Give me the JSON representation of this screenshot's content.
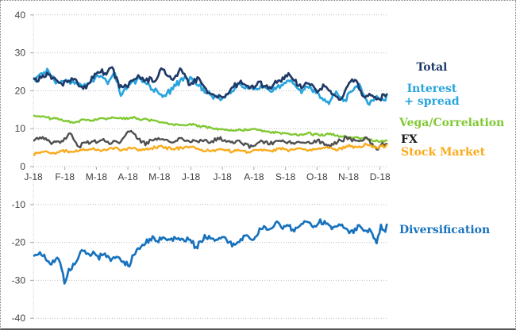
{
  "chart_data": {
    "type": "line",
    "title": "",
    "xlabel": "",
    "ylabel": "",
    "x_axis": {
      "categories": [
        "J-18",
        "F-18",
        "M-18",
        "A-18",
        "M-18",
        "J-18",
        "J-18",
        "A-18",
        "S-18",
        "O-18",
        "N-18",
        "D-18"
      ]
    },
    "y_axis": {
      "min": -40,
      "max": 40,
      "step": 10,
      "tick_labels": [
        "40",
        "30",
        "20",
        "10",
        "0",
        "-10",
        "-20",
        "-30",
        "-40"
      ],
      "tick_values": [
        40,
        30,
        20,
        10,
        0,
        -10,
        -20,
        -30,
        -40
      ]
    },
    "grid": "horizontal dotted gridlines every 10 units",
    "legend_position": "right",
    "axis_text_color": "#3f3f3f",
    "grid_color": "#bdbdbd",
    "series": [
      {
        "name": "Total",
        "legend": "Total",
        "color": "#1F3A68",
        "noise": 0.6,
        "points": [
          [
            0,
            22.5
          ],
          [
            0.45,
            24.6
          ],
          [
            0.7,
            22.3
          ],
          [
            1.0,
            22.2
          ],
          [
            1.25,
            23.3
          ],
          [
            1.5,
            20.4
          ],
          [
            1.8,
            23.0
          ],
          [
            2.0,
            25.8
          ],
          [
            2.2,
            24.0
          ],
          [
            2.4,
            26.3
          ],
          [
            2.7,
            20.6
          ],
          [
            3.0,
            22.0
          ],
          [
            3.2,
            24.0
          ],
          [
            3.5,
            22.5
          ],
          [
            3.8,
            23.2
          ],
          [
            4.0,
            25.8
          ],
          [
            4.3,
            23.0
          ],
          [
            4.55,
            25.6
          ],
          [
            4.85,
            22.0
          ],
          [
            5.1,
            23.3
          ],
          [
            5.4,
            19.8
          ],
          [
            5.65,
            18.6
          ],
          [
            5.95,
            18.4
          ],
          [
            6.2,
            21.0
          ],
          [
            6.45,
            22.6
          ],
          [
            6.7,
            20.8
          ],
          [
            7.0,
            22.0
          ],
          [
            7.3,
            20.4
          ],
          [
            7.6,
            22.8
          ],
          [
            7.95,
            24.2
          ],
          [
            8.25,
            20.8
          ],
          [
            8.55,
            22.3
          ],
          [
            8.8,
            19.8
          ],
          [
            9.05,
            21.4
          ],
          [
            9.3,
            19.0
          ],
          [
            9.55,
            17.8
          ],
          [
            9.8,
            21.8
          ],
          [
            10.0,
            23.2
          ],
          [
            10.25,
            17.8
          ],
          [
            10.5,
            18.8
          ],
          [
            10.75,
            17.9
          ],
          [
            11,
            19.8
          ]
        ]
      },
      {
        "name": "Interest + spread",
        "legend_lines": [
          "Interest",
          "+ spread"
        ],
        "color": "#28A4DE",
        "noise": 0.6,
        "points": [
          [
            0,
            22.8
          ],
          [
            0.4,
            25.4
          ],
          [
            0.65,
            22.5
          ],
          [
            0.95,
            22.8
          ],
          [
            1.2,
            22.4
          ],
          [
            1.5,
            21.2
          ],
          [
            1.8,
            22.6
          ],
          [
            2.05,
            24.6
          ],
          [
            2.3,
            22.6
          ],
          [
            2.5,
            24.4
          ],
          [
            2.7,
            19.2
          ],
          [
            3.0,
            21.6
          ],
          [
            3.25,
            23.4
          ],
          [
            3.6,
            21.4
          ],
          [
            3.9,
            19.0
          ],
          [
            4.1,
            18.6
          ],
          [
            4.4,
            21.4
          ],
          [
            4.7,
            23.8
          ],
          [
            5.0,
            22.4
          ],
          [
            5.3,
            20.0
          ],
          [
            5.6,
            18.4
          ],
          [
            5.9,
            18.0
          ],
          [
            6.2,
            20.6
          ],
          [
            6.5,
            21.8
          ],
          [
            6.8,
            20.2
          ],
          [
            7.1,
            21.2
          ],
          [
            7.4,
            19.6
          ],
          [
            7.7,
            21.6
          ],
          [
            8.0,
            22.6
          ],
          [
            8.3,
            19.4
          ],
          [
            8.6,
            21.0
          ],
          [
            8.9,
            18.6
          ],
          [
            9.15,
            16.8
          ],
          [
            9.4,
            19.6
          ],
          [
            9.65,
            17.2
          ],
          [
            9.9,
            20.4
          ],
          [
            10.15,
            21.6
          ],
          [
            10.4,
            16.9
          ],
          [
            10.65,
            18.2
          ],
          [
            10.85,
            17.5
          ],
          [
            11,
            18.6
          ]
        ]
      },
      {
        "name": "Vega/Correlation",
        "legend": "Vega/Correlation",
        "color": "#80C933",
        "noise": 0.22,
        "points": [
          [
            0,
            13.4
          ],
          [
            0.3,
            13.0
          ],
          [
            0.65,
            12.6
          ],
          [
            0.9,
            12.2
          ],
          [
            1.2,
            11.6
          ],
          [
            1.55,
            12.4
          ],
          [
            1.85,
            12.2
          ],
          [
            2.1,
            12.6
          ],
          [
            2.45,
            12.9
          ],
          [
            2.75,
            12.6
          ],
          [
            3.05,
            12.9
          ],
          [
            3.4,
            12.4
          ],
          [
            3.65,
            12.2
          ],
          [
            3.95,
            11.7
          ],
          [
            4.3,
            11.2
          ],
          [
            4.6,
            10.8
          ],
          [
            4.85,
            11.2
          ],
          [
            5.2,
            10.6
          ],
          [
            5.5,
            10.2
          ],
          [
            5.95,
            9.8
          ],
          [
            6.4,
            9.6
          ],
          [
            6.9,
            9.9
          ],
          [
            7.35,
            9.2
          ],
          [
            7.8,
            8.8
          ],
          [
            8.25,
            8.4
          ],
          [
            8.5,
            8.8
          ],
          [
            8.9,
            8.2
          ],
          [
            9.15,
            8.5
          ],
          [
            9.45,
            8.2
          ],
          [
            9.8,
            7.8
          ],
          [
            10.1,
            7.6
          ],
          [
            10.35,
            7.2
          ],
          [
            10.7,
            6.6
          ],
          [
            11,
            6.9
          ]
        ]
      },
      {
        "name": "FX",
        "legend": "FX",
        "color": "#4F4F4F",
        "noise": 0.45,
        "points": [
          [
            0,
            6.8
          ],
          [
            0.3,
            7.6
          ],
          [
            0.55,
            6.2
          ],
          [
            0.9,
            6.8
          ],
          [
            1.1,
            8.8
          ],
          [
            1.4,
            5.3
          ],
          [
            1.65,
            6.5
          ],
          [
            1.85,
            6.6
          ],
          [
            2.1,
            7.0
          ],
          [
            2.4,
            6.4
          ],
          [
            2.75,
            6.8
          ],
          [
            2.95,
            9.9
          ],
          [
            3.2,
            7.4
          ],
          [
            3.5,
            6.0
          ],
          [
            3.65,
            7.0
          ],
          [
            3.95,
            7.2
          ],
          [
            4.3,
            6.6
          ],
          [
            4.6,
            7.2
          ],
          [
            4.85,
            6.6
          ],
          [
            5.2,
            7.0
          ],
          [
            5.5,
            6.6
          ],
          [
            5.8,
            7.4
          ],
          [
            6.15,
            6.2
          ],
          [
            6.4,
            6.8
          ],
          [
            6.7,
            5.4
          ],
          [
            7.05,
            6.6
          ],
          [
            7.35,
            6.2
          ],
          [
            7.6,
            7.0
          ],
          [
            7.95,
            6.0
          ],
          [
            8.25,
            6.6
          ],
          [
            8.55,
            6.0
          ],
          [
            8.9,
            6.8
          ],
          [
            9.15,
            5.0
          ],
          [
            9.45,
            6.4
          ],
          [
            9.8,
            7.6
          ],
          [
            10.1,
            6.6
          ],
          [
            10.35,
            7.4
          ],
          [
            10.7,
            4.2
          ],
          [
            10.85,
            6.0
          ],
          [
            11,
            6.0
          ]
        ]
      },
      {
        "name": "Stock Market",
        "legend": "Stock Market",
        "color": "#FAAB1C",
        "noise": 0.3,
        "points": [
          [
            0,
            3.1
          ],
          [
            0.3,
            3.9
          ],
          [
            0.65,
            3.5
          ],
          [
            0.9,
            4.2
          ],
          [
            1.2,
            3.8
          ],
          [
            1.55,
            4.3
          ],
          [
            1.85,
            4.6
          ],
          [
            2.1,
            4.2
          ],
          [
            2.45,
            4.8
          ],
          [
            2.75,
            4.4
          ],
          [
            3.05,
            4.9
          ],
          [
            3.4,
            4.4
          ],
          [
            3.65,
            4.7
          ],
          [
            3.95,
            5.3
          ],
          [
            4.3,
            4.6
          ],
          [
            4.6,
            4.9
          ],
          [
            4.85,
            5.4
          ],
          [
            5.2,
            4.4
          ],
          [
            5.5,
            4.2
          ],
          [
            5.8,
            4.6
          ],
          [
            6.15,
            4.0
          ],
          [
            6.4,
            4.4
          ],
          [
            6.7,
            3.9
          ],
          [
            7.05,
            4.5
          ],
          [
            7.35,
            4.2
          ],
          [
            7.6,
            4.7
          ],
          [
            7.95,
            4.3
          ],
          [
            8.25,
            4.6
          ],
          [
            8.55,
            4.2
          ],
          [
            8.9,
            4.8
          ],
          [
            9.15,
            5.0
          ],
          [
            9.45,
            4.6
          ],
          [
            9.8,
            5.5
          ],
          [
            10.1,
            5.1
          ],
          [
            10.35,
            5.9
          ],
          [
            10.7,
            5.2
          ],
          [
            11,
            5.5
          ]
        ]
      },
      {
        "name": "Diversification",
        "legend": "Diversification",
        "color": "#1772BE",
        "noise": 0.55,
        "points": [
          [
            0,
            -23.5
          ],
          [
            0.2,
            -22.8
          ],
          [
            0.4,
            -24.5
          ],
          [
            0.55,
            -25.3
          ],
          [
            0.75,
            -24.0
          ],
          [
            0.85,
            -26.5
          ],
          [
            0.95,
            -30.8
          ],
          [
            1.1,
            -27.0
          ],
          [
            1.3,
            -25.5
          ],
          [
            1.5,
            -21.8
          ],
          [
            1.7,
            -23.2
          ],
          [
            1.85,
            -22.6
          ],
          [
            2.0,
            -24.0
          ],
          [
            2.2,
            -23.0
          ],
          [
            2.4,
            -24.8
          ],
          [
            2.6,
            -23.4
          ],
          [
            2.75,
            -25.0
          ],
          [
            2.95,
            -26.0
          ],
          [
            3.1,
            -23.0
          ],
          [
            3.3,
            -21.0
          ],
          [
            3.5,
            -19.8
          ],
          [
            3.7,
            -18.6
          ],
          [
            3.85,
            -19.6
          ],
          [
            4.05,
            -18.8
          ],
          [
            4.25,
            -19.2
          ],
          [
            4.4,
            -18.8
          ],
          [
            4.6,
            -19.2
          ],
          [
            4.85,
            -19.2
          ],
          [
            5.05,
            -21.3
          ],
          [
            5.25,
            -19.0
          ],
          [
            5.5,
            -18.6
          ],
          [
            5.7,
            -19.8
          ],
          [
            5.9,
            -18.4
          ],
          [
            6.05,
            -20.0
          ],
          [
            6.25,
            -21.0
          ],
          [
            6.45,
            -19.4
          ],
          [
            6.6,
            -18.0
          ],
          [
            6.8,
            -19.4
          ],
          [
            7.0,
            -17.0
          ],
          [
            7.15,
            -15.6
          ],
          [
            7.35,
            -16.8
          ],
          [
            7.55,
            -14.9
          ],
          [
            7.7,
            -16.4
          ],
          [
            7.9,
            -15.4
          ],
          [
            8.1,
            -17.0
          ],
          [
            8.3,
            -15.4
          ],
          [
            8.5,
            -14.4
          ],
          [
            8.7,
            -15.8
          ],
          [
            8.9,
            -14.7
          ],
          [
            9.1,
            -15.2
          ],
          [
            9.3,
            -16.0
          ],
          [
            9.5,
            -15.0
          ],
          [
            9.7,
            -16.4
          ],
          [
            9.9,
            -17.4
          ],
          [
            10.1,
            -15.9
          ],
          [
            10.3,
            -16.6
          ],
          [
            10.5,
            -17.0
          ],
          [
            10.65,
            -20.2
          ],
          [
            10.8,
            -15.8
          ],
          [
            10.9,
            -17.4
          ],
          [
            11,
            -15.3
          ]
        ]
      }
    ]
  }
}
